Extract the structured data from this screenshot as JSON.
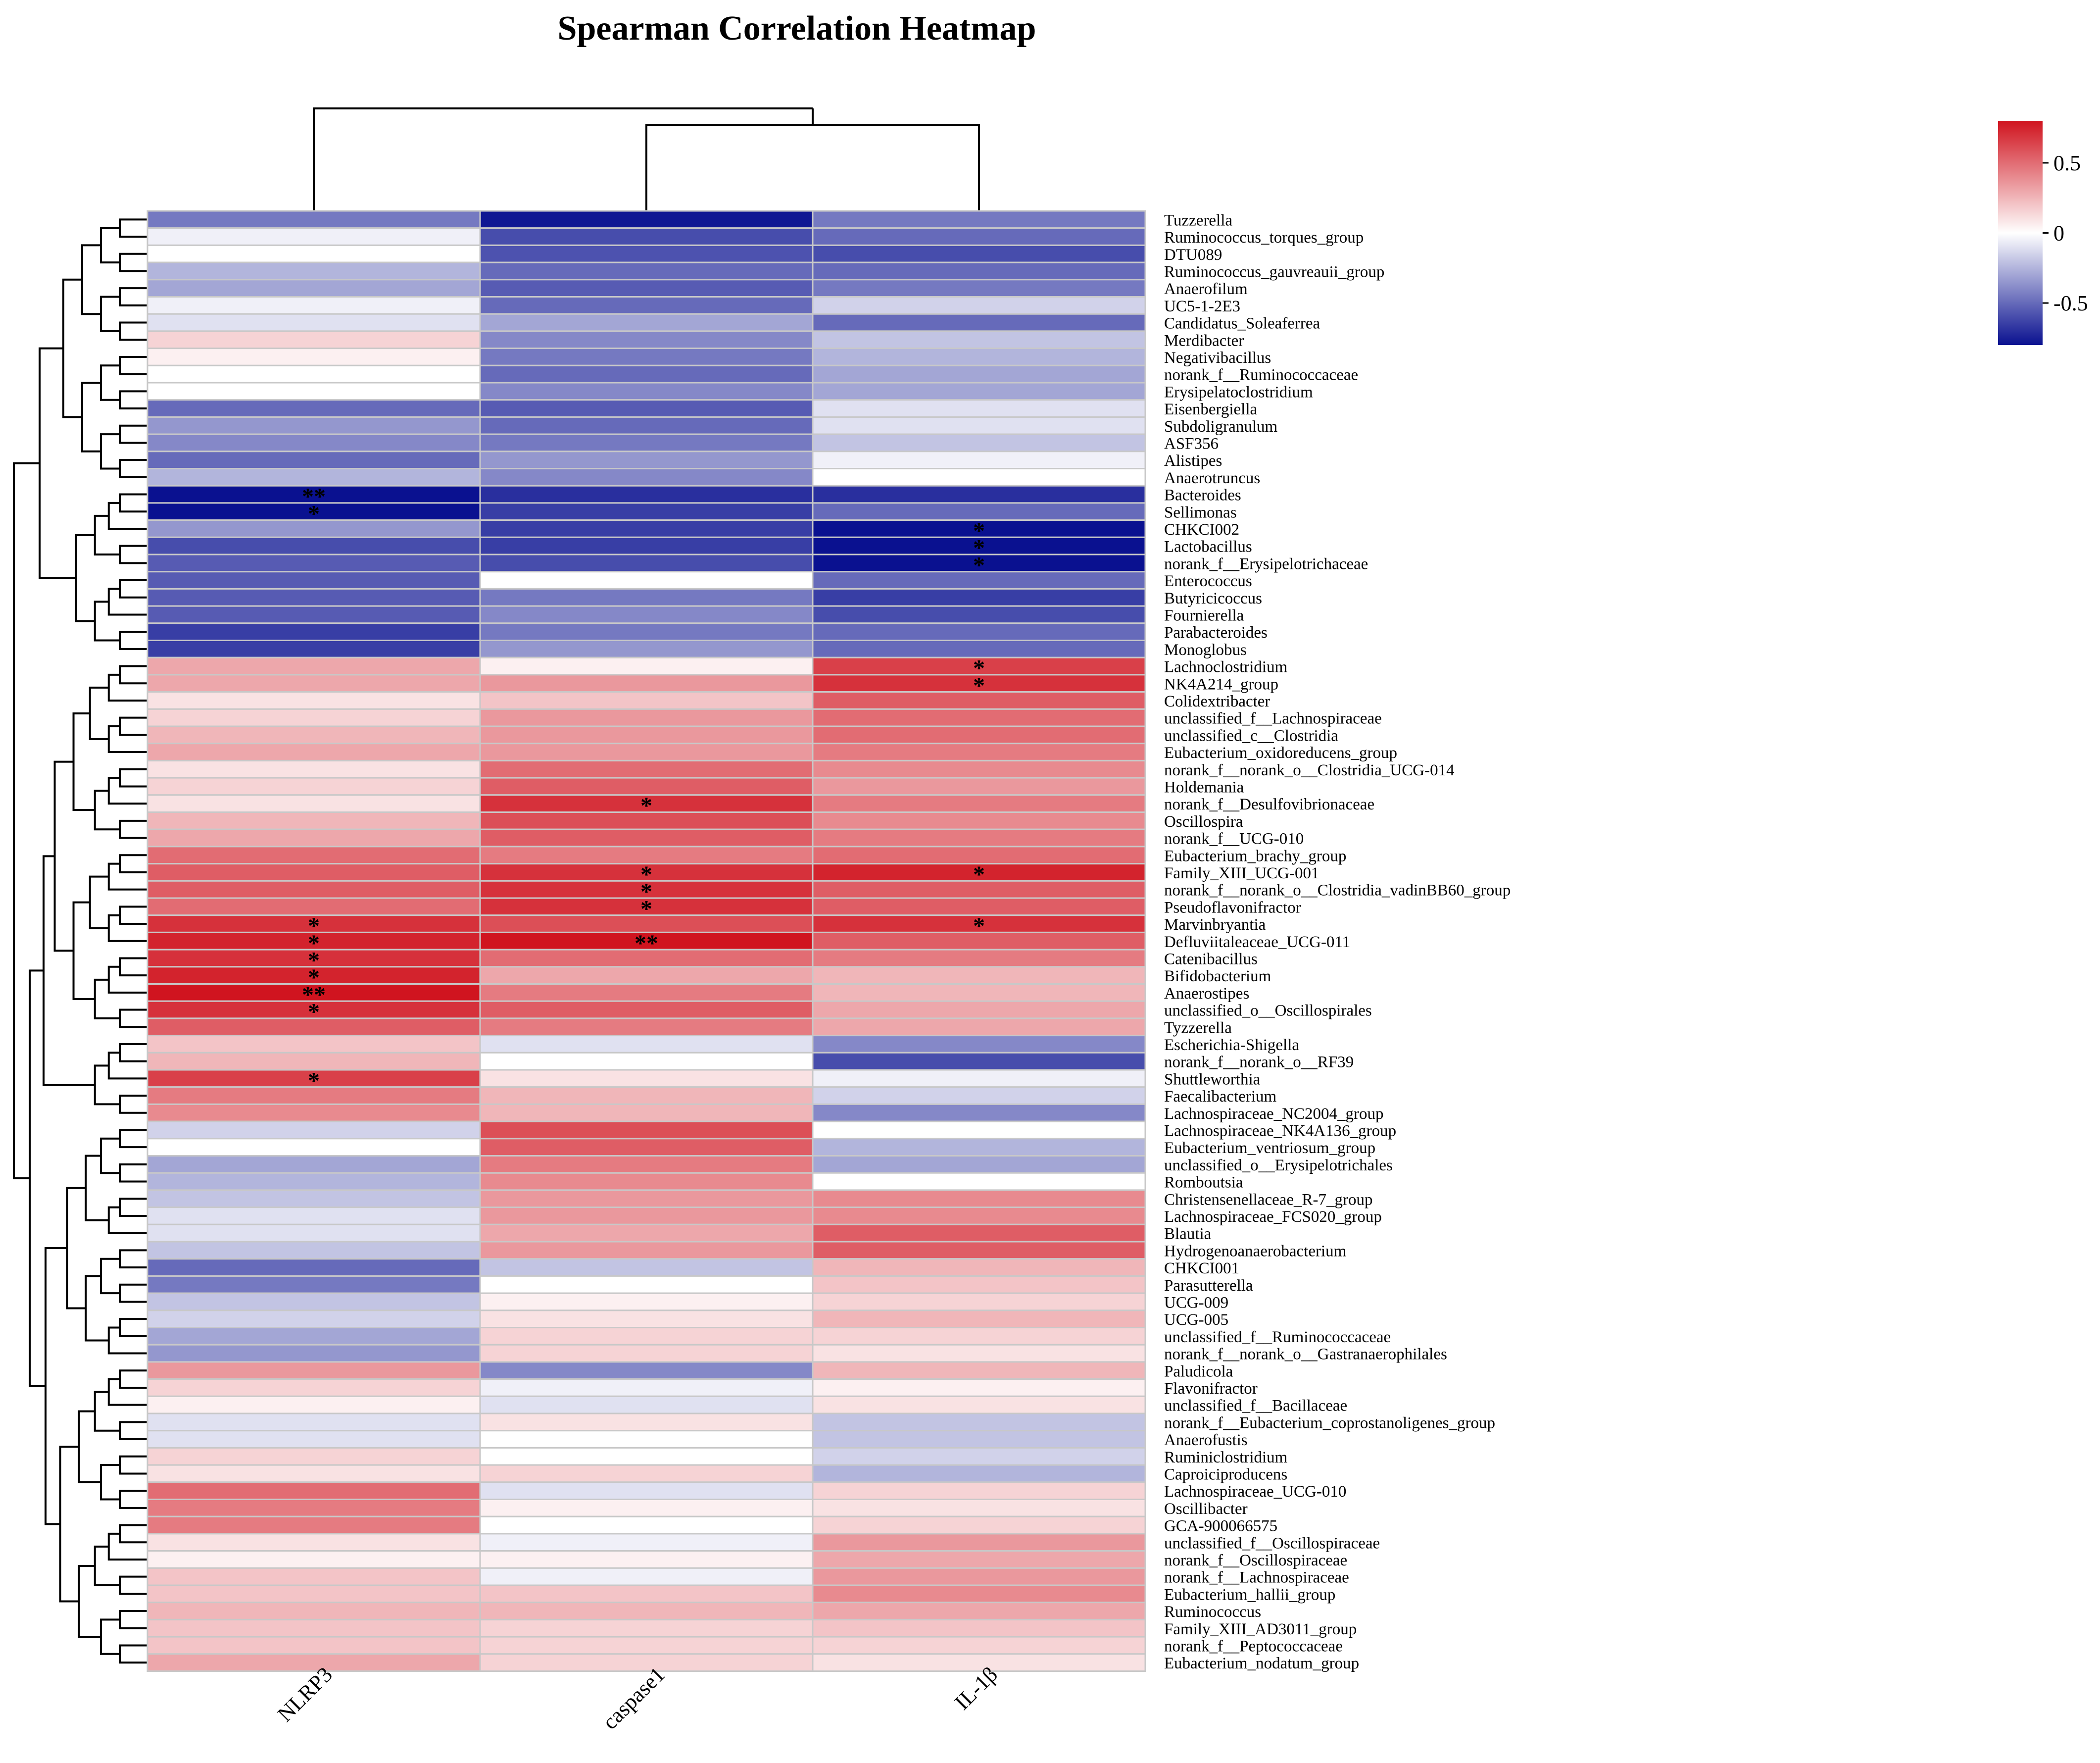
{
  "chart_data": {
    "type": "heatmap",
    "title": "Spearman Correlation Heatmap",
    "columns": [
      "NLRP3",
      "caspase1",
      "IL-1β"
    ],
    "column_order_note": "NLRP3 | (caspase1, IL-1β)",
    "colorbar": {
      "min": -0.8,
      "max": 0.8,
      "ticks": [
        0.5,
        0,
        -0.5
      ],
      "tick_labels": [
        "0.5",
        "0",
        "-0.5"
      ],
      "low_color": "#0a1190",
      "mid_color": "#ffffff",
      "high_color": "#d0141f"
    },
    "rows": [
      {
        "name": "Tuzzerella",
        "values": [
          -0.45,
          -0.78,
          -0.45
        ],
        "sig": [
          "",
          "",
          ""
        ]
      },
      {
        "name": "Ruminococcus_torques_group",
        "values": [
          -0.05,
          -0.6,
          -0.5
        ],
        "sig": [
          "",
          "",
          ""
        ]
      },
      {
        "name": "DTU089",
        "values": [
          0.0,
          -0.58,
          -0.6
        ],
        "sig": [
          "",
          "",
          ""
        ]
      },
      {
        "name": "Ruminococcus_gauvreauii_group",
        "values": [
          -0.25,
          -0.5,
          -0.5
        ],
        "sig": [
          "",
          "",
          ""
        ]
      },
      {
        "name": "Anaerofilum",
        "values": [
          -0.3,
          -0.55,
          -0.45
        ],
        "sig": [
          "",
          "",
          ""
        ]
      },
      {
        "name": "UC5-1-2E3",
        "values": [
          -0.05,
          -0.5,
          -0.15
        ],
        "sig": [
          "",
          "",
          ""
        ]
      },
      {
        "name": "Candidatus_Soleaferrea",
        "values": [
          -0.1,
          -0.3,
          -0.5
        ],
        "sig": [
          "",
          "",
          ""
        ]
      },
      {
        "name": "Merdibacter",
        "values": [
          0.15,
          -0.4,
          -0.2
        ],
        "sig": [
          "",
          "",
          ""
        ]
      },
      {
        "name": "Negativibacillus",
        "values": [
          0.05,
          -0.45,
          -0.25
        ],
        "sig": [
          "",
          "",
          ""
        ]
      },
      {
        "name": "norank_f__Ruminococcaceae",
        "values": [
          0.0,
          -0.5,
          -0.3
        ],
        "sig": [
          "",
          "",
          ""
        ]
      },
      {
        "name": "Erysipelatoclostridium",
        "values": [
          0.0,
          -0.4,
          -0.3
        ],
        "sig": [
          "",
          "",
          ""
        ]
      },
      {
        "name": "Eisenbergiella",
        "values": [
          -0.5,
          -0.55,
          -0.1
        ],
        "sig": [
          "",
          "",
          ""
        ]
      },
      {
        "name": "Subdoligranulum",
        "values": [
          -0.35,
          -0.5,
          -0.1
        ],
        "sig": [
          "",
          "",
          ""
        ]
      },
      {
        "name": "ASF356",
        "values": [
          -0.4,
          -0.45,
          -0.2
        ],
        "sig": [
          "",
          "",
          ""
        ]
      },
      {
        "name": "Alistipes",
        "values": [
          -0.5,
          -0.35,
          -0.05
        ],
        "sig": [
          "",
          "",
          ""
        ]
      },
      {
        "name": "Anaerotruncus",
        "values": [
          -0.25,
          -0.4,
          0.0
        ],
        "sig": [
          "",
          "",
          ""
        ]
      },
      {
        "name": "Bacteroides",
        "values": [
          -0.85,
          -0.7,
          -0.7
        ],
        "sig": [
          "**",
          "",
          ""
        ]
      },
      {
        "name": "Sellimonas",
        "values": [
          -0.8,
          -0.65,
          -0.5
        ],
        "sig": [
          "*",
          "",
          ""
        ]
      },
      {
        "name": "CHKCI002",
        "values": [
          -0.35,
          -0.65,
          -0.8
        ],
        "sig": [
          "",
          "",
          "*"
        ]
      },
      {
        "name": "Lactobacillus",
        "values": [
          -0.6,
          -0.65,
          -0.8
        ],
        "sig": [
          "",
          "",
          "*"
        ]
      },
      {
        "name": "norank_f__Erysipelotrichaceae",
        "values": [
          -0.55,
          -0.6,
          -0.8
        ],
        "sig": [
          "",
          "",
          "*"
        ]
      },
      {
        "name": "Enterococcus",
        "values": [
          -0.55,
          0.0,
          -0.5
        ],
        "sig": [
          "",
          "",
          ""
        ]
      },
      {
        "name": "Butyricicoccus",
        "values": [
          -0.55,
          -0.45,
          -0.65
        ],
        "sig": [
          "",
          "",
          ""
        ]
      },
      {
        "name": "Fournierella",
        "values": [
          -0.55,
          -0.4,
          -0.6
        ],
        "sig": [
          "",
          "",
          ""
        ]
      },
      {
        "name": "Parabacteroides",
        "values": [
          -0.65,
          -0.45,
          -0.5
        ],
        "sig": [
          "",
          "",
          ""
        ]
      },
      {
        "name": "Monoglobus",
        "values": [
          -0.65,
          -0.35,
          -0.5
        ],
        "sig": [
          "",
          "",
          ""
        ]
      },
      {
        "name": "Lachnoclostridium",
        "values": [
          0.3,
          0.05,
          0.65
        ],
        "sig": [
          "",
          "",
          "*"
        ]
      },
      {
        "name": "NK4A214_group",
        "values": [
          0.3,
          0.35,
          0.7
        ],
        "sig": [
          "",
          "",
          "*"
        ]
      },
      {
        "name": "Colidextribacter",
        "values": [
          0.1,
          0.2,
          0.55
        ],
        "sig": [
          "",
          "",
          ""
        ]
      },
      {
        "name": "unclassified_f__Lachnospiraceae",
        "values": [
          0.15,
          0.35,
          0.5
        ],
        "sig": [
          "",
          "",
          ""
        ]
      },
      {
        "name": "unclassified_c__Clostridia",
        "values": [
          0.25,
          0.35,
          0.5
        ],
        "sig": [
          "",
          "",
          ""
        ]
      },
      {
        "name": "Eubacterium_oxidoreducens_group",
        "values": [
          0.3,
          0.35,
          0.45
        ],
        "sig": [
          "",
          "",
          ""
        ]
      },
      {
        "name": "norank_f__norank_o__Clostridia_UCG-014",
        "values": [
          0.1,
          0.5,
          0.4
        ],
        "sig": [
          "",
          "",
          ""
        ]
      },
      {
        "name": "Holdemania",
        "values": [
          0.15,
          0.55,
          0.35
        ],
        "sig": [
          "",
          "",
          ""
        ]
      },
      {
        "name": "norank_f__Desulfovibrionaceae",
        "values": [
          0.1,
          0.7,
          0.45
        ],
        "sig": [
          "",
          "*",
          ""
        ]
      },
      {
        "name": "Oscillospira",
        "values": [
          0.25,
          0.6,
          0.4
        ],
        "sig": [
          "",
          "",
          ""
        ]
      },
      {
        "name": "norank_f__UCG-010",
        "values": [
          0.3,
          0.55,
          0.45
        ],
        "sig": [
          "",
          "",
          ""
        ]
      },
      {
        "name": "Eubacterium_brachy_group",
        "values": [
          0.5,
          0.45,
          0.5
        ],
        "sig": [
          "",
          "",
          ""
        ]
      },
      {
        "name": "Family_XIII_UCG-001",
        "values": [
          0.55,
          0.7,
          0.75
        ],
        "sig": [
          "",
          "*",
          "*"
        ]
      },
      {
        "name": "norank_f__norank_o__Clostridia_vadinBB60_group",
        "values": [
          0.55,
          0.7,
          0.55
        ],
        "sig": [
          "",
          "*",
          ""
        ]
      },
      {
        "name": "Pseudoflavonifractor",
        "values": [
          0.5,
          0.7,
          0.55
        ],
        "sig": [
          "",
          "*",
          ""
        ]
      },
      {
        "name": "Marvinbryantia",
        "values": [
          0.7,
          0.6,
          0.7
        ],
        "sig": [
          "*",
          "",
          "*"
        ]
      },
      {
        "name": "Defluviitaleaceae_UCG-011",
        "values": [
          0.75,
          0.85,
          0.55
        ],
        "sig": [
          "*",
          "**",
          ""
        ]
      },
      {
        "name": "Catenibacillus",
        "values": [
          0.7,
          0.5,
          0.45
        ],
        "sig": [
          "*",
          "",
          ""
        ]
      },
      {
        "name": "Bifidobacterium",
        "values": [
          0.75,
          0.3,
          0.25
        ],
        "sig": [
          "*",
          "",
          ""
        ]
      },
      {
        "name": "Anaerostipes",
        "values": [
          0.8,
          0.45,
          0.25
        ],
        "sig": [
          "**",
          "",
          ""
        ]
      },
      {
        "name": "unclassified_o__Oscillospirales",
        "values": [
          0.7,
          0.55,
          0.3
        ],
        "sig": [
          "*",
          "",
          ""
        ]
      },
      {
        "name": "Tyzzerella",
        "values": [
          0.55,
          0.45,
          0.3
        ],
        "sig": [
          "",
          "",
          ""
        ]
      },
      {
        "name": "Escherichia-Shigella",
        "values": [
          0.2,
          -0.1,
          -0.4
        ],
        "sig": [
          "",
          "",
          ""
        ]
      },
      {
        "name": "norank_f__norank_o__RF39",
        "values": [
          0.25,
          0.0,
          -0.6
        ],
        "sig": [
          "",
          "",
          ""
        ]
      },
      {
        "name": "Shuttleworthia",
        "values": [
          0.65,
          0.1,
          -0.05
        ],
        "sig": [
          "*",
          "",
          ""
        ]
      },
      {
        "name": "Faecalibacterium",
        "values": [
          0.45,
          0.25,
          -0.15
        ],
        "sig": [
          "",
          "",
          ""
        ]
      },
      {
        "name": "Lachnospiraceae_NC2004_group",
        "values": [
          0.4,
          0.25,
          -0.4
        ],
        "sig": [
          "",
          "",
          ""
        ]
      },
      {
        "name": "Lachnospiraceae_NK4A136_group",
        "values": [
          -0.15,
          0.6,
          0.0
        ],
        "sig": [
          "",
          "",
          ""
        ]
      },
      {
        "name": "Eubacterium_ventriosum_group",
        "values": [
          0.0,
          0.55,
          -0.25
        ],
        "sig": [
          "",
          "",
          ""
        ]
      },
      {
        "name": "unclassified_o__Erysipelotrichales",
        "values": [
          -0.3,
          0.45,
          -0.3
        ],
        "sig": [
          "",
          "",
          ""
        ]
      },
      {
        "name": "Romboutsia",
        "values": [
          -0.25,
          0.4,
          0.0
        ],
        "sig": [
          "",
          "",
          ""
        ]
      },
      {
        "name": "Christensenellaceae_R-7_group",
        "values": [
          -0.2,
          0.35,
          0.4
        ],
        "sig": [
          "",
          "",
          ""
        ]
      },
      {
        "name": "Lachnospiraceae_FCS020_group",
        "values": [
          -0.1,
          0.35,
          0.4
        ],
        "sig": [
          "",
          "",
          ""
        ]
      },
      {
        "name": "Blautia",
        "values": [
          -0.1,
          0.3,
          0.55
        ],
        "sig": [
          "",
          "",
          ""
        ]
      },
      {
        "name": "Hydrogenoanaerobacterium",
        "values": [
          -0.2,
          0.35,
          0.55
        ],
        "sig": [
          "",
          "",
          ""
        ]
      },
      {
        "name": "CHKCI001",
        "values": [
          -0.5,
          -0.2,
          0.25
        ],
        "sig": [
          "",
          "",
          ""
        ]
      },
      {
        "name": "Parasutterella",
        "values": [
          -0.45,
          0.0,
          0.2
        ],
        "sig": [
          "",
          "",
          ""
        ]
      },
      {
        "name": "UCG-009",
        "values": [
          -0.2,
          0.05,
          0.15
        ],
        "sig": [
          "",
          "",
          ""
        ]
      },
      {
        "name": "UCG-005",
        "values": [
          -0.15,
          0.1,
          0.25
        ],
        "sig": [
          "",
          "",
          ""
        ]
      },
      {
        "name": "unclassified_f__Ruminococcaceae",
        "values": [
          -0.3,
          0.15,
          0.15
        ],
        "sig": [
          "",
          "",
          ""
        ]
      },
      {
        "name": "norank_f__norank_o__Gastranaerophilales",
        "values": [
          -0.35,
          0.15,
          0.1
        ],
        "sig": [
          "",
          "",
          ""
        ]
      },
      {
        "name": "Paludicola",
        "values": [
          0.35,
          -0.4,
          0.25
        ],
        "sig": [
          "",
          "",
          ""
        ]
      },
      {
        "name": "Flavonifractor",
        "values": [
          0.15,
          -0.05,
          0.05
        ],
        "sig": [
          "",
          "",
          ""
        ]
      },
      {
        "name": "unclassified_f__Bacillaceae",
        "values": [
          0.05,
          -0.1,
          0.1
        ],
        "sig": [
          "",
          "",
          ""
        ]
      },
      {
        "name": "norank_f__Eubacterium_coprostanoligenes_group",
        "values": [
          -0.1,
          0.1,
          -0.2
        ],
        "sig": [
          "",
          "",
          ""
        ]
      },
      {
        "name": "Anaerofustis",
        "values": [
          -0.1,
          0.0,
          -0.2
        ],
        "sig": [
          "",
          "",
          ""
        ]
      },
      {
        "name": "Ruminiclostridium",
        "values": [
          0.15,
          0.0,
          -0.15
        ],
        "sig": [
          "",
          "",
          ""
        ]
      },
      {
        "name": "Caproiciproducens",
        "values": [
          0.1,
          0.15,
          -0.25
        ],
        "sig": [
          "",
          "",
          ""
        ]
      },
      {
        "name": "Lachnospiraceae_UCG-010",
        "values": [
          0.5,
          -0.1,
          0.15
        ],
        "sig": [
          "",
          "",
          ""
        ]
      },
      {
        "name": "Oscillibacter",
        "values": [
          0.45,
          0.05,
          0.1
        ],
        "sig": [
          "",
          "",
          ""
        ]
      },
      {
        "name": "GCA-900066575",
        "values": [
          0.45,
          0.0,
          0.15
        ],
        "sig": [
          "",
          "",
          ""
        ]
      },
      {
        "name": "unclassified_f__Oscillospiraceae",
        "values": [
          0.1,
          -0.05,
          0.35
        ],
        "sig": [
          "",
          "",
          ""
        ]
      },
      {
        "name": "norank_f__Oscillospiraceae",
        "values": [
          0.05,
          0.05,
          0.3
        ],
        "sig": [
          "",
          "",
          ""
        ]
      },
      {
        "name": "norank_f__Lachnospiraceae",
        "values": [
          0.2,
          -0.05,
          0.35
        ],
        "sig": [
          "",
          "",
          ""
        ]
      },
      {
        "name": "Eubacterium_hallii_group",
        "values": [
          0.2,
          0.2,
          0.4
        ],
        "sig": [
          "",
          "",
          ""
        ]
      },
      {
        "name": "Ruminococcus",
        "values": [
          0.25,
          0.25,
          0.3
        ],
        "sig": [
          "",
          "",
          ""
        ]
      },
      {
        "name": "Family_XIII_AD3011_group",
        "values": [
          0.2,
          0.15,
          0.2
        ],
        "sig": [
          "",
          "",
          ""
        ]
      },
      {
        "name": "norank_f__Peptococcaceae",
        "values": [
          0.2,
          0.15,
          0.15
        ],
        "sig": [
          "",
          "",
          ""
        ]
      },
      {
        "name": "Eubacterium_nodatum_group",
        "values": [
          0.3,
          0.15,
          0.1
        ],
        "sig": [
          "",
          "",
          ""
        ]
      }
    ]
  }
}
